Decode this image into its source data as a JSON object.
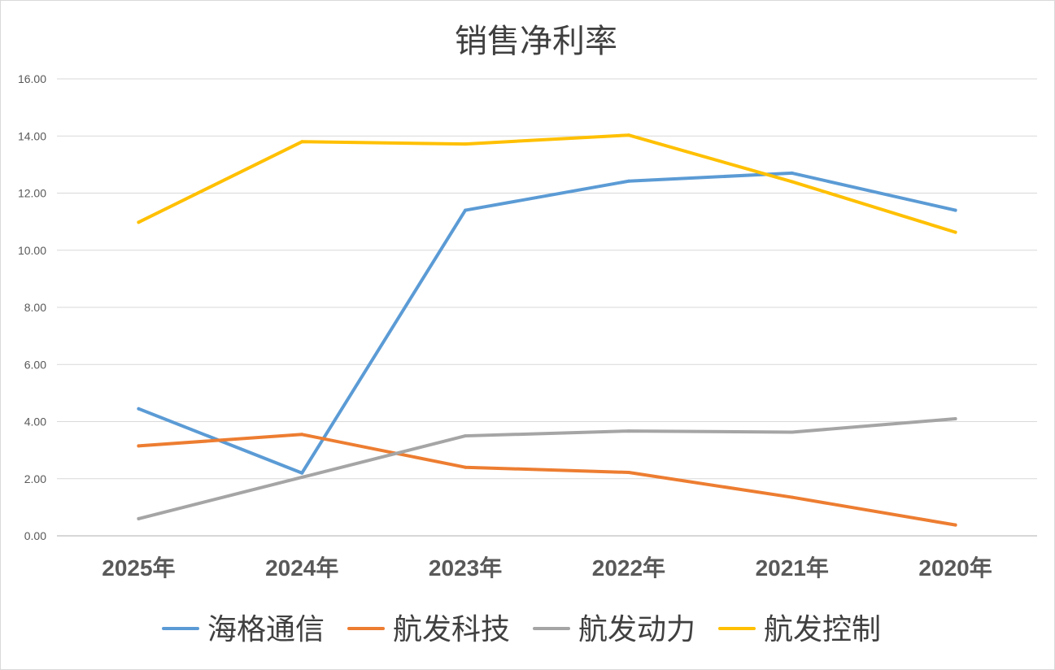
{
  "chart_data": {
    "type": "line",
    "title": "销售净利率",
    "xlabel": "",
    "ylabel": "",
    "categories": [
      "2025年",
      "2024年",
      "2023年",
      "2022年",
      "2021年",
      "2020年"
    ],
    "ylim": [
      0,
      16
    ],
    "yticks": [
      "0.00",
      "2.00",
      "4.00",
      "6.00",
      "8.00",
      "10.00",
      "12.00",
      "14.00",
      "16.00"
    ],
    "ytick_values": [
      0,
      2,
      4,
      6,
      8,
      10,
      12,
      14,
      16
    ],
    "grid": true,
    "legend_position": "bottom",
    "series": [
      {
        "name": "海格通信",
        "color": "#5B9BD5",
        "values": [
          4.45,
          2.2,
          11.4,
          12.42,
          12.7,
          11.4
        ]
      },
      {
        "name": "航发科技",
        "color": "#ED7D31",
        "values": [
          3.15,
          3.55,
          2.4,
          2.22,
          1.35,
          0.38
        ]
      },
      {
        "name": "航发动力",
        "color": "#A5A5A5",
        "values": [
          0.6,
          2.05,
          3.5,
          3.67,
          3.63,
          4.1
        ]
      },
      {
        "name": "航发控制",
        "color": "#FFC000",
        "values": [
          10.98,
          13.8,
          13.72,
          14.03,
          12.4,
          10.63
        ]
      }
    ]
  }
}
